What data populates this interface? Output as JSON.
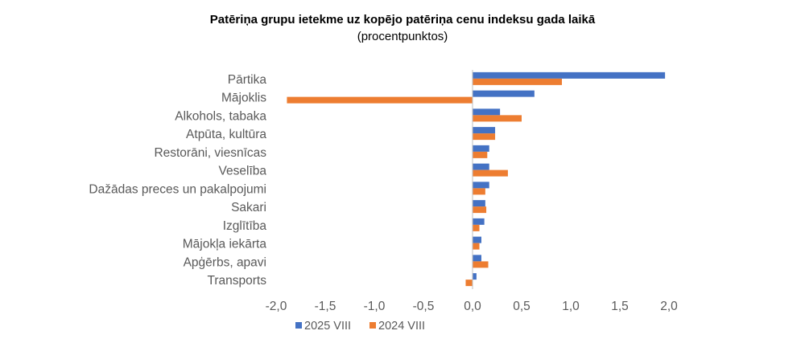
{
  "chart_data": {
    "type": "bar",
    "orientation": "horizontal",
    "title": "Patēriņa grupu ietekme uz kopējo patēriņa cenu indeksu gada laikā",
    "subtitle": "(procentpunktos)",
    "xlabel": "",
    "ylabel": "",
    "xlim": [
      -2.0,
      2.0
    ],
    "ticks": [
      -2.0,
      -1.5,
      -1.0,
      -0.5,
      0.0,
      0.5,
      1.0,
      1.5,
      2.0
    ],
    "tick_labels": [
      "-2,0",
      "-1,5",
      "-1,0",
      "-0,5",
      "0,0",
      "0,5",
      "1,0",
      "1,5",
      "2,0"
    ],
    "grid": false,
    "legend_position": "bottom",
    "categories": [
      "Pārtika",
      "Mājoklis",
      "Alkohols, tabaka",
      "Atpūta, kultūra",
      "Restorāni, viesnīcas",
      "Veselība",
      "Dažādas preces un pakalpojumi",
      "Sakari",
      "Izglītība",
      "Mājokļa iekārta",
      "Apģērbs, apavi",
      "Transports"
    ],
    "series": [
      {
        "name": "2025 VIII",
        "color": "#4472C4",
        "values": [
          1.96,
          0.63,
          0.28,
          0.23,
          0.17,
          0.17,
          0.17,
          0.13,
          0.12,
          0.09,
          0.09,
          0.04
        ]
      },
      {
        "name": "2024 VIII",
        "color": "#ED7D31",
        "values": [
          0.91,
          -1.89,
          0.5,
          0.23,
          0.15,
          0.36,
          0.13,
          0.14,
          0.07,
          0.07,
          0.16,
          -0.07
        ]
      }
    ]
  }
}
